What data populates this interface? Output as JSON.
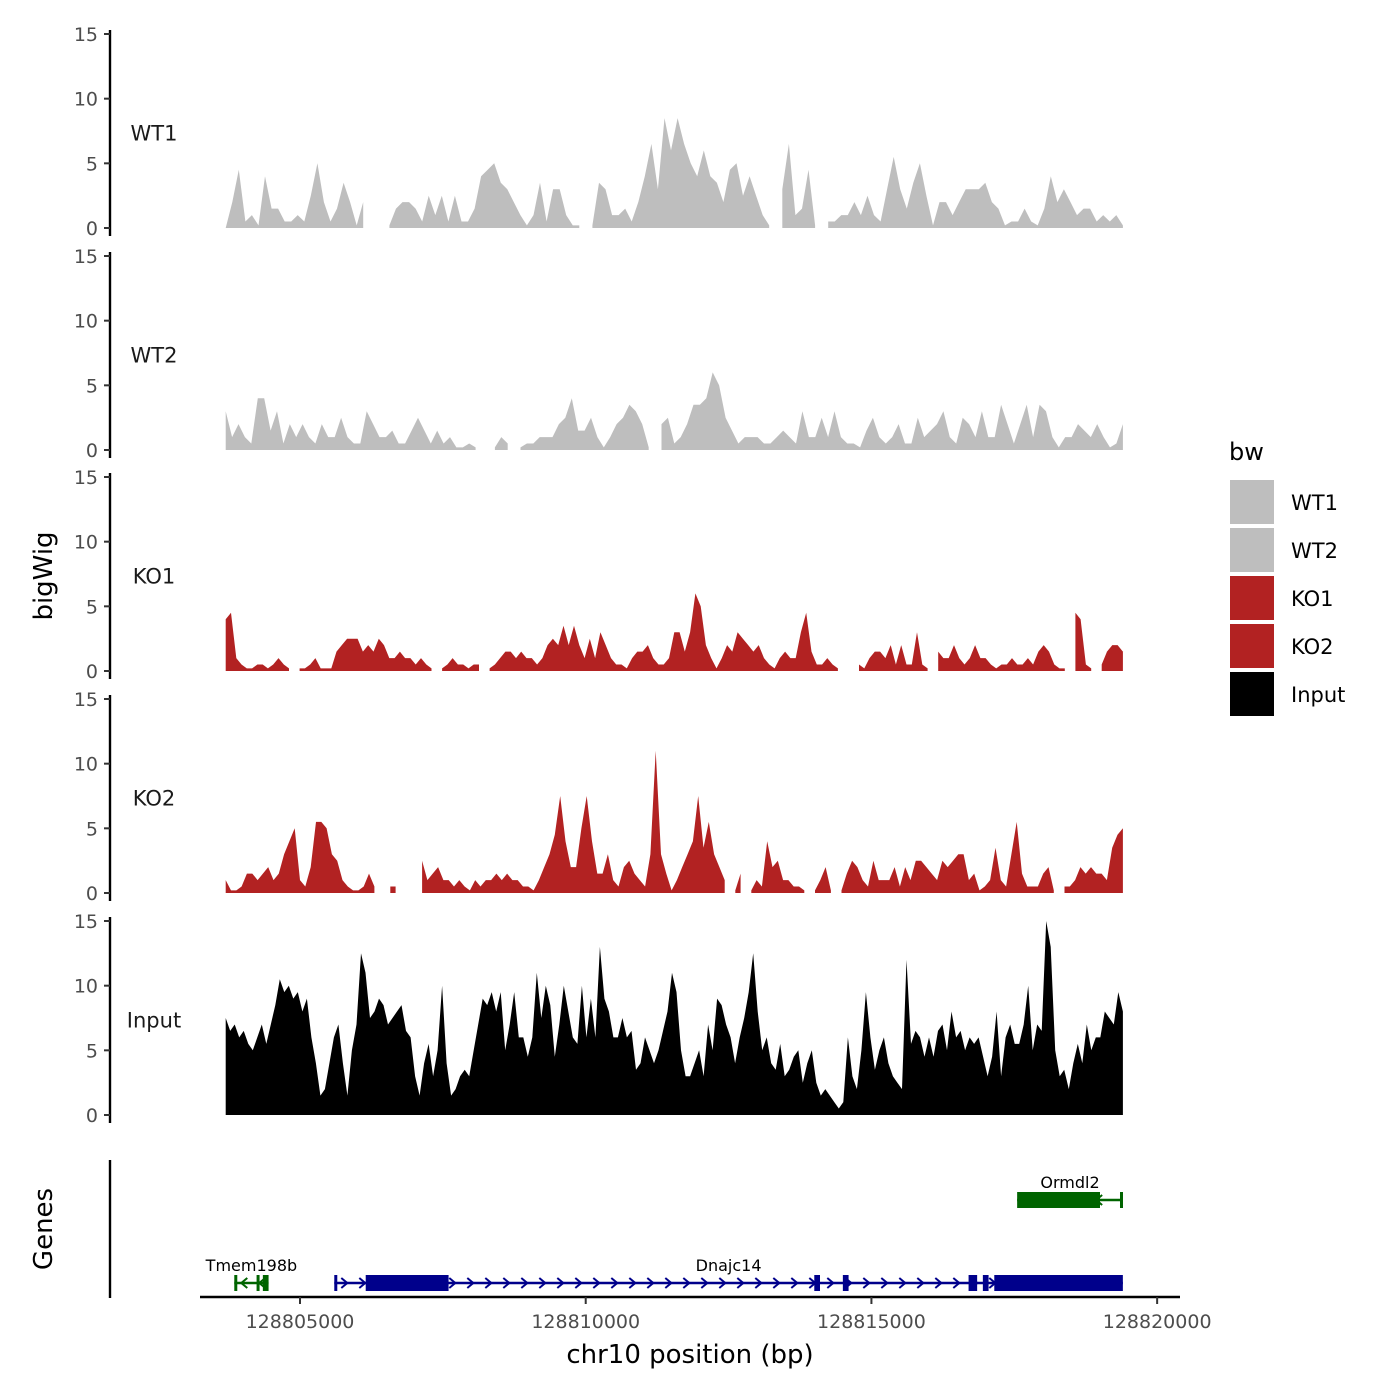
{
  "chart_data": {
    "type": "area",
    "title": "",
    "xlabel": "chr10 position (bp)",
    "ylabel": "bigWig",
    "genes_label": "Genes",
    "chromosome": "chr10",
    "xlim": [
      128803250,
      128820400
    ],
    "x_ticks": [
      128805000,
      128810000,
      128815000,
      128820000
    ],
    "x_tick_labels": [
      "128805000",
      "128810000",
      "128815000",
      "128820000"
    ],
    "ylim": [
      0,
      15
    ],
    "y_ticks": [
      0,
      5,
      10,
      15
    ],
    "y_tick_labels": [
      "0",
      "5",
      "10",
      "15"
    ],
    "x_start": 128803700,
    "x_end": 128819400,
    "legend": {
      "title": "bw",
      "position": "right",
      "entries": [
        {
          "label": "WT1",
          "color": "#bebebe"
        },
        {
          "label": "WT2",
          "color": "#bebebe"
        },
        {
          "label": "KO1",
          "color": "#b22222"
        },
        {
          "label": "KO2",
          "color": "#b22222"
        },
        {
          "label": "Input",
          "color": "#000000"
        }
      ]
    },
    "series": [
      {
        "name": "WT1",
        "color": "#bebebe",
        "values": [
          0,
          2,
          4.5,
          0.5,
          1,
          0.2,
          4,
          1.5,
          1.5,
          0.5,
          0.5,
          1,
          0.5,
          2.5,
          5,
          2,
          0.5,
          1.5,
          3.5,
          2,
          0.2,
          2,
          null,
          null,
          null,
          0.2,
          1.5,
          2,
          2,
          1.5,
          0.5,
          2.5,
          1,
          2.5,
          0.5,
          2.5,
          0.5,
          0.5,
          1.5,
          4,
          4.5,
          5,
          3.5,
          3,
          2,
          1,
          0.2,
          1,
          3.5,
          0.5,
          3,
          3,
          1,
          0.2,
          0.2,
          null,
          0.2,
          3.5,
          3,
          1,
          1,
          1.5,
          0.5,
          2,
          4,
          6.5,
          3,
          8.5,
          6,
          8.5,
          6.5,
          5,
          4,
          6,
          4,
          3.5,
          2,
          4.5,
          5,
          2.5,
          4,
          2.5,
          1,
          0.2,
          null,
          3,
          6.5,
          1,
          1.5,
          4.5,
          0.2,
          null,
          0.5,
          0.5,
          1,
          1,
          2,
          1,
          2.5,
          1,
          0.5,
          3,
          5.5,
          3,
          1.5,
          3.5,
          5,
          2.5,
          0.2,
          2,
          2,
          1,
          2,
          3,
          3,
          3,
          3.5,
          2,
          1.5,
          0.2,
          0.5,
          0.5,
          1.5,
          0.5,
          0.2,
          1.5,
          4,
          2,
          3,
          2,
          1,
          1.5,
          1.5,
          0.5,
          1,
          0.5,
          1,
          0.2
        ]
      },
      {
        "name": "WT2",
        "color": "#bebebe",
        "values": [
          3,
          1,
          2,
          1,
          0.5,
          4,
          4,
          1.5,
          3,
          0.5,
          2,
          1,
          2,
          1,
          0.5,
          2,
          1,
          1,
          2.5,
          1,
          0.5,
          0.5,
          3,
          2,
          1,
          1,
          1.5,
          0.5,
          0.5,
          1.5,
          2.5,
          1.5,
          0.5,
          1.5,
          0.5,
          1,
          0.2,
          0.2,
          0.5,
          0.2,
          null,
          null,
          0.2,
          1,
          0.5,
          null,
          0.2,
          0.5,
          0.5,
          1,
          1,
          1,
          2,
          2.5,
          4,
          1.5,
          1.5,
          2.5,
          1,
          0.2,
          1,
          2,
          2.5,
          3.5,
          3,
          2,
          0.2,
          null,
          2,
          2.5,
          0.5,
          1,
          2,
          3.5,
          3.5,
          4,
          6,
          5,
          2.5,
          1.5,
          0.5,
          1,
          1,
          1,
          0.5,
          0.5,
          1,
          1.5,
          1,
          0.5,
          3,
          1,
          1,
          2.5,
          1,
          3,
          1,
          0.5,
          0.5,
          0.2,
          1.5,
          2.5,
          1,
          0.5,
          1,
          2,
          0.5,
          0.5,
          2.5,
          1,
          1.5,
          2,
          3,
          1,
          0.5,
          2.5,
          2,
          1,
          3,
          1,
          1,
          3.5,
          2,
          0.5,
          2,
          3.5,
          1,
          3.5,
          3,
          1,
          0.2,
          1,
          1,
          2,
          1.5,
          1,
          2,
          1,
          0.2,
          0.5,
          2
        ]
      },
      {
        "name": "KO1",
        "color": "#b22222",
        "values": [
          4,
          4.5,
          1,
          0.5,
          0.2,
          0.2,
          0.5,
          0.5,
          0.2,
          0.5,
          1,
          0.5,
          0.2,
          null,
          0.2,
          0.2,
          0.5,
          1,
          0.2,
          0.2,
          0.2,
          1.5,
          2,
          2.5,
          2.5,
          2.5,
          1.5,
          2,
          1.5,
          2.5,
          2,
          1,
          1,
          1.5,
          1,
          1,
          0.5,
          1,
          0.5,
          0.2,
          null,
          0.2,
          0.5,
          1,
          0.5,
          0.5,
          0.2,
          0.5,
          0.5,
          null,
          0.2,
          0.5,
          1,
          1.5,
          1.5,
          1,
          1.5,
          1,
          1,
          0.5,
          1,
          2,
          2.5,
          2,
          3.5,
          2,
          3.5,
          2,
          1,
          2.5,
          1,
          3,
          2,
          1,
          0.5,
          0.5,
          0.2,
          1,
          1.5,
          1.5,
          2,
          1,
          0.5,
          0.5,
          1,
          3,
          3,
          1.5,
          3,
          6,
          5,
          2,
          1,
          0.2,
          1,
          2,
          1.5,
          3,
          2.5,
          2,
          1.5,
          2,
          1,
          0.5,
          0.2,
          1,
          1.5,
          1,
          1,
          3,
          4.5,
          1.5,
          0.5,
          0.5,
          1,
          0.5,
          0.2,
          null,
          0.2,
          null,
          0.5,
          0.2,
          1,
          1.5,
          1.5,
          1,
          2,
          0.5,
          2,
          0.5,
          0.5,
          3,
          0.5,
          0.2,
          null,
          1.5,
          1,
          1,
          2,
          1,
          0.5,
          1,
          2,
          1,
          1,
          0.5,
          0.2,
          0.5,
          0.5,
          1,
          0.5,
          0.5,
          1,
          0.5,
          1.5,
          2,
          1.5,
          0.5,
          0.2,
          0.2,
          null,
          4.5,
          4,
          0.5,
          0.2,
          null,
          0.5,
          1.5,
          2,
          2,
          1.5
        ]
      },
      {
        "name": "KO2",
        "color": "#b22222",
        "values": [
          1,
          0.2,
          0.2,
          0.5,
          1.5,
          1.5,
          1,
          1.5,
          2,
          1,
          1.5,
          3,
          4,
          5,
          1,
          0.5,
          2,
          5.5,
          5.5,
          5,
          3,
          2.5,
          1,
          0.5,
          0.2,
          0.2,
          0.5,
          1.5,
          0.5,
          null,
          null,
          0.5,
          0.5,
          null,
          null,
          null,
          null,
          2.5,
          1,
          1.5,
          2,
          1,
          1,
          0.5,
          1,
          0.5,
          0.2,
          1,
          0.5,
          1,
          1,
          1.5,
          1,
          1.5,
          1,
          1,
          0.5,
          0.5,
          0.2,
          1,
          2,
          3,
          4.5,
          7.5,
          4,
          2,
          2,
          5,
          7.5,
          4,
          1.5,
          1.5,
          3,
          1,
          0.5,
          2,
          2.5,
          1.5,
          1,
          0.5,
          3,
          11,
          3,
          1.5,
          0.2,
          1,
          2,
          3,
          4,
          7.5,
          3.5,
          5.5,
          3,
          2,
          1,
          null,
          0.2,
          1.5,
          null,
          0.2,
          1,
          0.5,
          4,
          2,
          2.5,
          1,
          1,
          0.5,
          0.5,
          0.2,
          null,
          0.2,
          1,
          2,
          0.2,
          null,
          0.2,
          1.5,
          2.5,
          2,
          1,
          0.5,
          2.5,
          1,
          1,
          1,
          2,
          0.5,
          2,
          1,
          2.5,
          2.5,
          2,
          1.5,
          1,
          2.5,
          2,
          2.5,
          3,
          3,
          1,
          1.5,
          0.2,
          0.5,
          1,
          3.5,
          1,
          0.5,
          3,
          5.5,
          1.5,
          0.5,
          0.5,
          0.5,
          1.5,
          2,
          0.2,
          null,
          0.5,
          0.5,
          1,
          2,
          1.5,
          2,
          1.5,
          1.5,
          1,
          3.5,
          4.5,
          5
        ]
      },
      {
        "name": "Input",
        "color": "#000000",
        "values": [
          7.5,
          6.5,
          7,
          6,
          6.5,
          5.5,
          5,
          6,
          7,
          5.5,
          7,
          8.5,
          10.5,
          9.5,
          10,
          9,
          9.5,
          8,
          9,
          6,
          4,
          1.5,
          2,
          4,
          6,
          7,
          4,
          1.5,
          5,
          7,
          12.5,
          11,
          7.5,
          8,
          9,
          8.5,
          7,
          7.5,
          8,
          8.5,
          6.5,
          6,
          3,
          1.5,
          4,
          5.5,
          3,
          5,
          10,
          4,
          1.5,
          2,
          3,
          3.5,
          3,
          5,
          7,
          9,
          8.5,
          9.5,
          8,
          9.5,
          5,
          7,
          9.5,
          6,
          6,
          4.5,
          6,
          11,
          7.5,
          10,
          8.5,
          4.5,
          7,
          10,
          8,
          6,
          5.5,
          10,
          6,
          9,
          6,
          13,
          9,
          8,
          6,
          6,
          7.5,
          6,
          6.5,
          3.5,
          4,
          6,
          5,
          4,
          5,
          6.5,
          8,
          11,
          9.5,
          5,
          3,
          3,
          4,
          5,
          3,
          7,
          5,
          9,
          8.5,
          7,
          6,
          4,
          6,
          7.5,
          9.5,
          12.5,
          8,
          5,
          6,
          4,
          3.5,
          5.5,
          3,
          3.5,
          4.5,
          5,
          2.5,
          4,
          5,
          2.5,
          1.5,
          2,
          1.5,
          1,
          0.5,
          1,
          6,
          3,
          2,
          5,
          9.5,
          6,
          3.5,
          5,
          6,
          4,
          3,
          2.5,
          2,
          12,
          5.5,
          6.5,
          6,
          4.5,
          6,
          4.5,
          6.5,
          7,
          5,
          8,
          6,
          6.5,
          5,
          6,
          5.5,
          6,
          4.5,
          3,
          4.5,
          8,
          3,
          6,
          7,
          5.5,
          5.5,
          7,
          10,
          5,
          7,
          6.5,
          15,
          13,
          5,
          3,
          3.5,
          2,
          4,
          5.5,
          4,
          7,
          5,
          6,
          6,
          8,
          7.5,
          7,
          9.5,
          8
        ]
      }
    ],
    "genes": [
      {
        "name": "Tmem198b",
        "label": "Tmem198b",
        "strand": "-",
        "color": "#006400",
        "row": 2,
        "start": 128803850,
        "end": 128804450,
        "exons": [
          [
            128803850,
            128803900
          ],
          [
            128804240,
            128804270
          ],
          [
            128804350,
            128804450
          ]
        ]
      },
      {
        "name": "Dnajc14",
        "label": "Dnajc14",
        "strand": "+",
        "color": "#00008b",
        "row": 2,
        "start": 128805600,
        "end": 128819400,
        "exons": [
          [
            128805600,
            128805650
          ],
          [
            128806150,
            128807600
          ],
          [
            128814000,
            128814100
          ],
          [
            128814500,
            128814600
          ],
          [
            128816700,
            128816850
          ],
          [
            128816950,
            128817050
          ],
          [
            128817150,
            128819400
          ]
        ]
      },
      {
        "name": "Ormdl2",
        "label": "Ormdl2",
        "strand": "-",
        "color": "#006400",
        "row": 1,
        "start": 128817550,
        "end": 128819400,
        "exons": [
          [
            128817550,
            128819000
          ],
          [
            128819350,
            128819400
          ]
        ]
      }
    ]
  }
}
